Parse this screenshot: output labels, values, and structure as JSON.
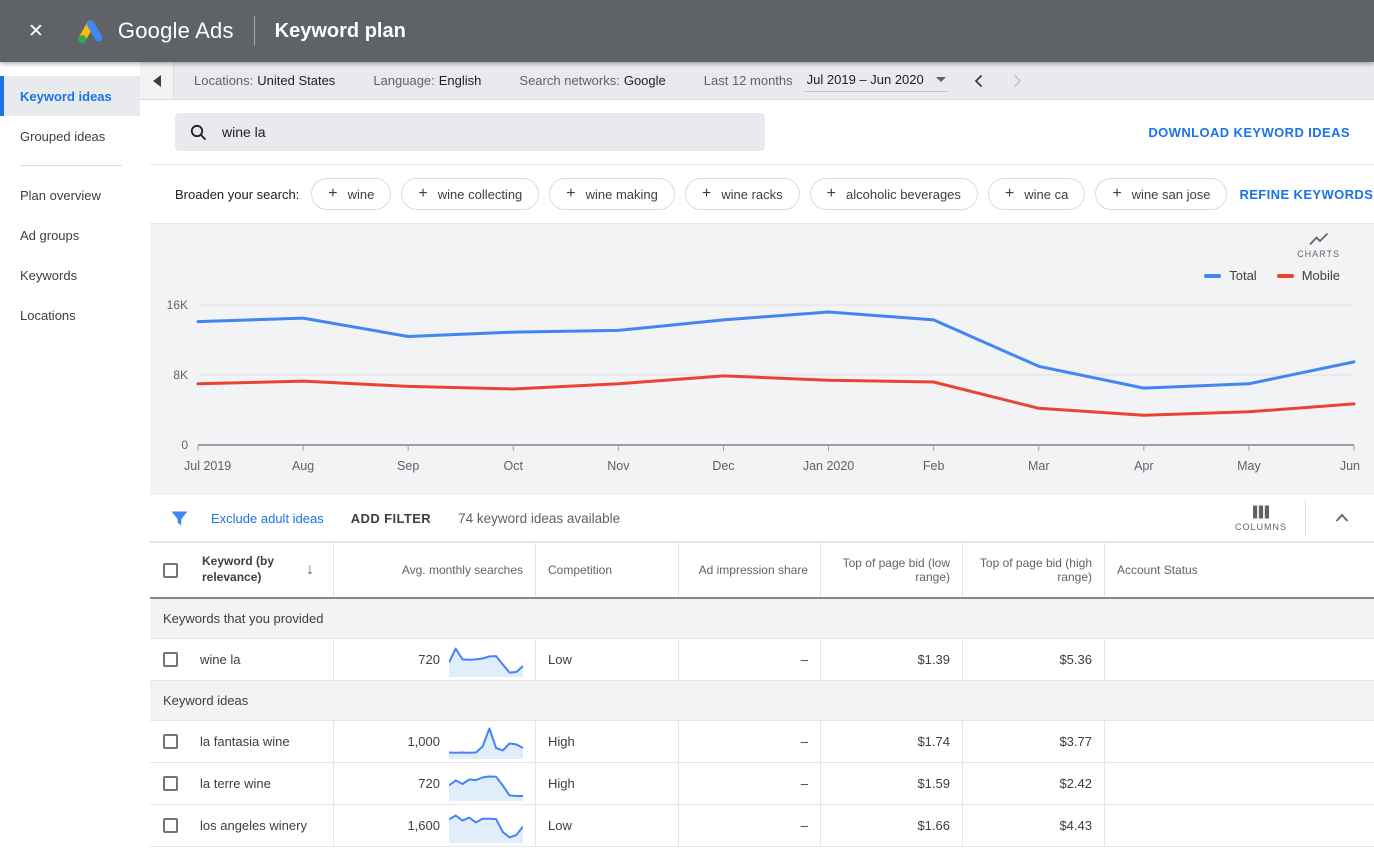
{
  "topbar": {
    "close_icon": "✕",
    "brand": "Google Ads",
    "page_title": "Keyword plan"
  },
  "sidebar": {
    "items": [
      {
        "label": "Keyword ideas",
        "active": true
      },
      {
        "label": "Grouped ideas",
        "active": false,
        "divider_after": true
      },
      {
        "label": "Plan overview",
        "active": false
      },
      {
        "label": "Ad groups",
        "active": false
      },
      {
        "label": "Keywords",
        "active": false
      },
      {
        "label": "Locations",
        "active": false
      }
    ]
  },
  "context_bar": {
    "locations_label": "Locations:",
    "locations_value": "United States",
    "language_label": "Language:",
    "language_value": "English",
    "networks_label": "Search networks:",
    "networks_value": "Google",
    "range_label": "Last 12 months",
    "range_value": "Jul 2019 – Jun 2020"
  },
  "search": {
    "query": "wine la",
    "download_label": "DOWNLOAD KEYWORD IDEAS"
  },
  "broaden": {
    "label": "Broaden your search:",
    "chips": [
      "wine",
      "wine collecting",
      "wine making",
      "wine racks",
      "alcoholic beverages",
      "wine ca",
      "wine san jose"
    ],
    "refine_label": "REFINE KEYWORDS"
  },
  "chart": {
    "toggle_label": "CHARTS"
  },
  "colors": {
    "accent": "#1a73e8",
    "total_line": "#4285f4",
    "mobile_line": "#ea4335",
    "sparkline": "#4285f4",
    "sparkline_fill": "#e2edfc"
  },
  "chart_data": {
    "type": "line",
    "categories": [
      "Jul 2019",
      "Aug",
      "Sep",
      "Oct",
      "Nov",
      "Dec",
      "Jan 2020",
      "Feb",
      "Mar",
      "Apr",
      "May",
      "Jun"
    ],
    "series": [
      {
        "name": "Total",
        "color": "#4285f4",
        "values": [
          14100,
          14500,
          12400,
          12900,
          13100,
          14300,
          15200,
          14300,
          9000,
          6500,
          7000,
          9500
        ]
      },
      {
        "name": "Mobile",
        "color": "#ea4335",
        "values": [
          7000,
          7300,
          6700,
          6400,
          7000,
          7900,
          7400,
          7200,
          4200,
          3400,
          3800,
          4700
        ]
      }
    ],
    "title": "",
    "xlabel": "",
    "ylabel": "",
    "ylim": [
      0,
      16000
    ],
    "yticks": [
      {
        "label": "0",
        "value": 0
      },
      {
        "label": "8K",
        "value": 8000
      },
      {
        "label": "16K",
        "value": 16000
      }
    ],
    "grid": "horizontal",
    "legend_position": "top-right"
  },
  "filter_bar": {
    "exclude_label": "Exclude adult ideas",
    "add_filter_label": "ADD FILTER",
    "count_text": "74 keyword ideas available",
    "columns_label": "COLUMNS"
  },
  "table": {
    "columns": [
      "Keyword (by relevance)",
      "Avg. monthly searches",
      "Competition",
      "Ad impression share",
      "Top of page bid (low range)",
      "Top of page bid (high range)",
      "Account Status"
    ],
    "sections": [
      {
        "header": "Keywords that you provided",
        "rows": [
          {
            "keyword": "wine la",
            "avg_monthly_searches": "720",
            "trend": [
              42,
              88,
              52,
              51,
              52,
              55,
              62,
              63,
              35,
              8,
              10,
              30
            ],
            "competition": "Low",
            "ad_impression_share": "–",
            "top_of_page_bid_low": "$1.39",
            "top_of_page_bid_high": "$5.36",
            "account_status": ""
          }
        ]
      },
      {
        "header": "Keyword ideas",
        "rows": [
          {
            "keyword": "la fantasia wine",
            "avg_monthly_searches": "1,000",
            "trend": [
              15,
              14,
              15,
              14,
              15,
              35,
              95,
              30,
              22,
              45,
              42,
              30
            ],
            "competition": "High",
            "ad_impression_share": "–",
            "top_of_page_bid_low": "$1.74",
            "top_of_page_bid_high": "$3.77",
            "account_status": ""
          },
          {
            "keyword": "la terre wine",
            "avg_monthly_searches": "720",
            "trend": [
              45,
              62,
              50,
              65,
              63,
              72,
              75,
              74,
              45,
              12,
              10,
              10
            ],
            "competition": "High",
            "ad_impression_share": "–",
            "top_of_page_bid_low": "$1.59",
            "top_of_page_bid_high": "$2.42",
            "account_status": ""
          },
          {
            "keyword": "los angeles winery",
            "avg_monthly_searches": "1,600",
            "trend": [
              72,
              85,
              68,
              78,
              62,
              74,
              74,
              73,
              30,
              12,
              20,
              48
            ],
            "competition": "Low",
            "ad_impression_share": "–",
            "top_of_page_bid_low": "$1.66",
            "top_of_page_bid_high": "$4.43",
            "account_status": ""
          }
        ]
      }
    ]
  }
}
